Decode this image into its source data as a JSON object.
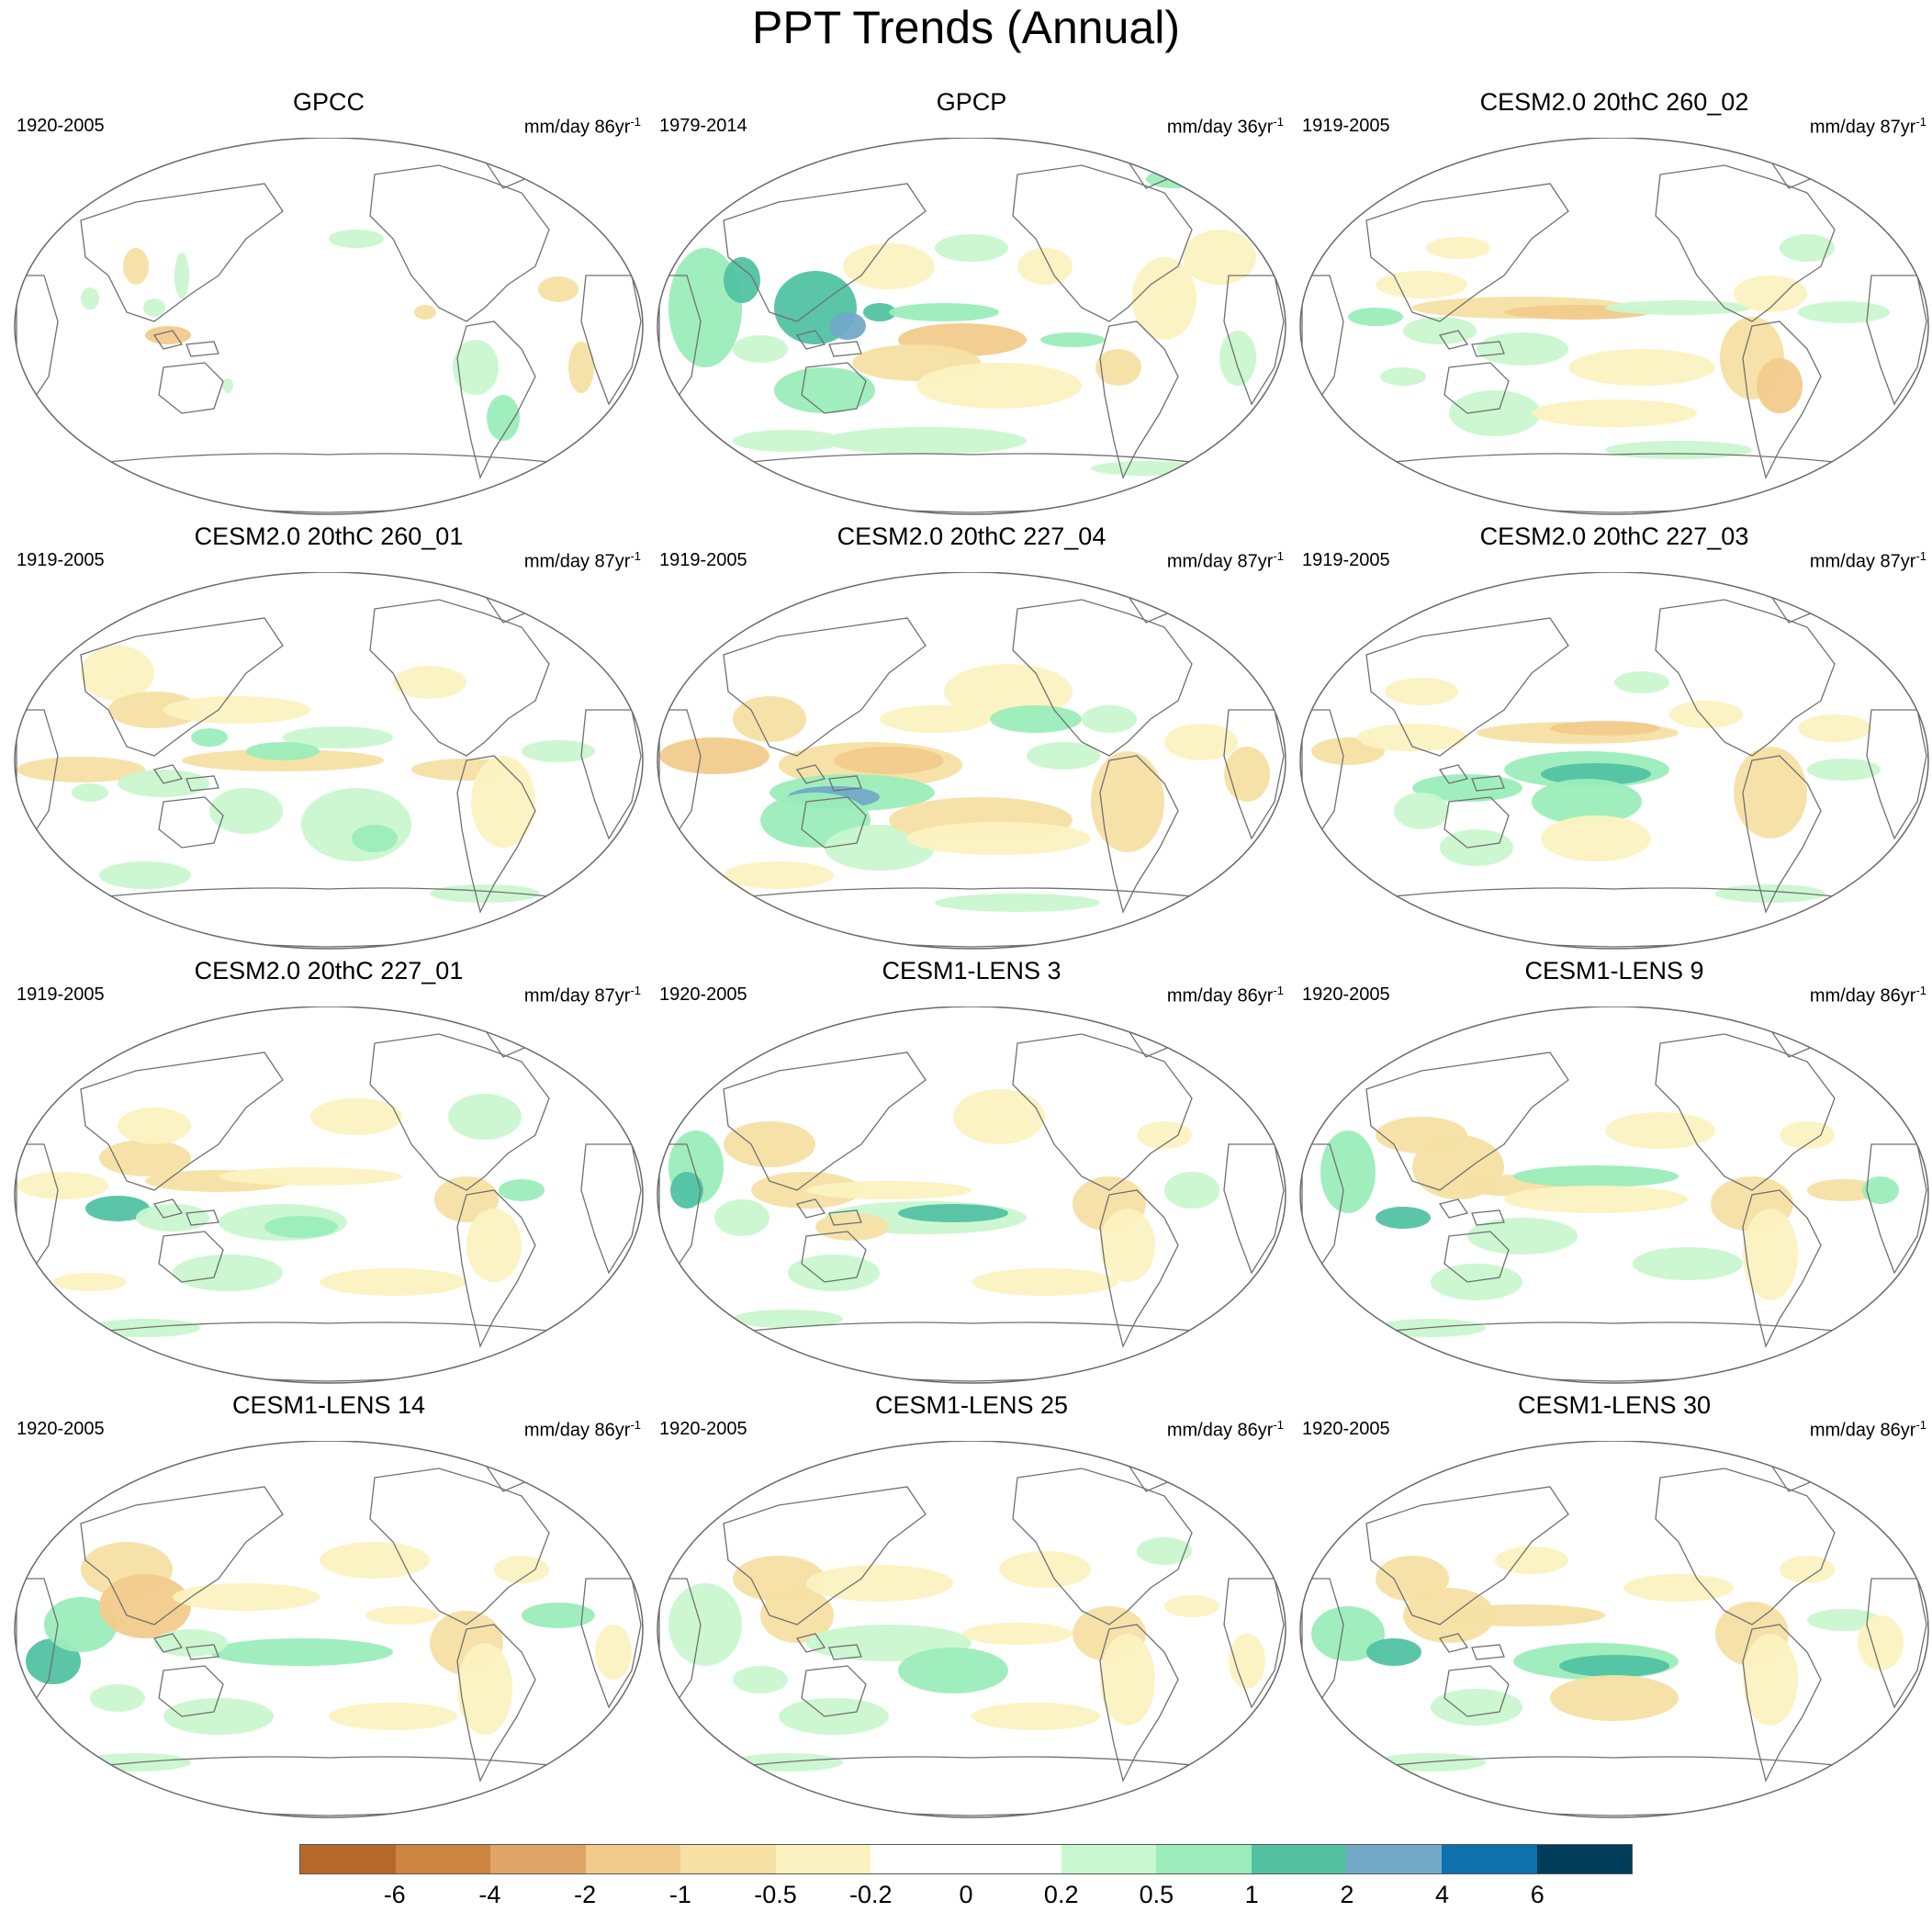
{
  "title": "PPT Trends (Annual)",
  "panels": [
    {
      "title": "GPCC",
      "period": "1920-2005",
      "units": "mm/day 86yr",
      "units_exp": "-1",
      "pattern": "gpcc"
    },
    {
      "title": "GPCP",
      "period": "1979-2014",
      "units": "mm/day 36yr",
      "units_exp": "-1",
      "pattern": "gpcp"
    },
    {
      "title": "CESM2.0 20thC 260_02",
      "period": "1919-2005",
      "units": "mm/day 87yr",
      "units_exp": "-1",
      "pattern": "modelA"
    },
    {
      "title": "CESM2.0 20thC 260_01",
      "period": "1919-2005",
      "units": "mm/day 87yr",
      "units_exp": "-1",
      "pattern": "modelB"
    },
    {
      "title": "CESM2.0 20thC 227_04",
      "period": "1919-2005",
      "units": "mm/day 87yr",
      "units_exp": "-1",
      "pattern": "modelC"
    },
    {
      "title": "CESM2.0 20thC 227_03",
      "period": "1919-2005",
      "units": "mm/day 87yr",
      "units_exp": "-1",
      "pattern": "modelD"
    },
    {
      "title": "CESM2.0 20thC 227_01",
      "period": "1919-2005",
      "units": "mm/day 87yr",
      "units_exp": "-1",
      "pattern": "modelE"
    },
    {
      "title": "CESM1-LENS 3",
      "period": "1920-2005",
      "units": "mm/day 86yr",
      "units_exp": "-1",
      "pattern": "lensA"
    },
    {
      "title": "CESM1-LENS 9",
      "period": "1920-2005",
      "units": "mm/day 86yr",
      "units_exp": "-1",
      "pattern": "lensB"
    },
    {
      "title": "CESM1-LENS 14",
      "period": "1920-2005",
      "units": "mm/day 86yr",
      "units_exp": "-1",
      "pattern": "lensC"
    },
    {
      "title": "CESM1-LENS 25",
      "period": "1920-2005",
      "units": "mm/day 86yr",
      "units_exp": "-1",
      "pattern": "lensD"
    },
    {
      "title": "CESM1-LENS 30",
      "period": "1920-2005",
      "units": "mm/day 86yr",
      "units_exp": "-1",
      "pattern": "lensE"
    }
  ],
  "colorbar": {
    "colors": [
      "#b5682a",
      "#cd8441",
      "#dfa566",
      "#f2cb8c",
      "#f6e0a4",
      "#fbf2c0",
      "#ffffff",
      "#ffffff",
      "#c9f7cf",
      "#9bedbb",
      "#52c2a3",
      "#72a9c8",
      "#0e70ad",
      "#003d5a"
    ],
    "labels": [
      "-6",
      "-4",
      "-2",
      "-1",
      "-0.5",
      "-0.2",
      "0",
      "0.2",
      "0.5",
      "1",
      "2",
      "4",
      "6"
    ]
  }
}
